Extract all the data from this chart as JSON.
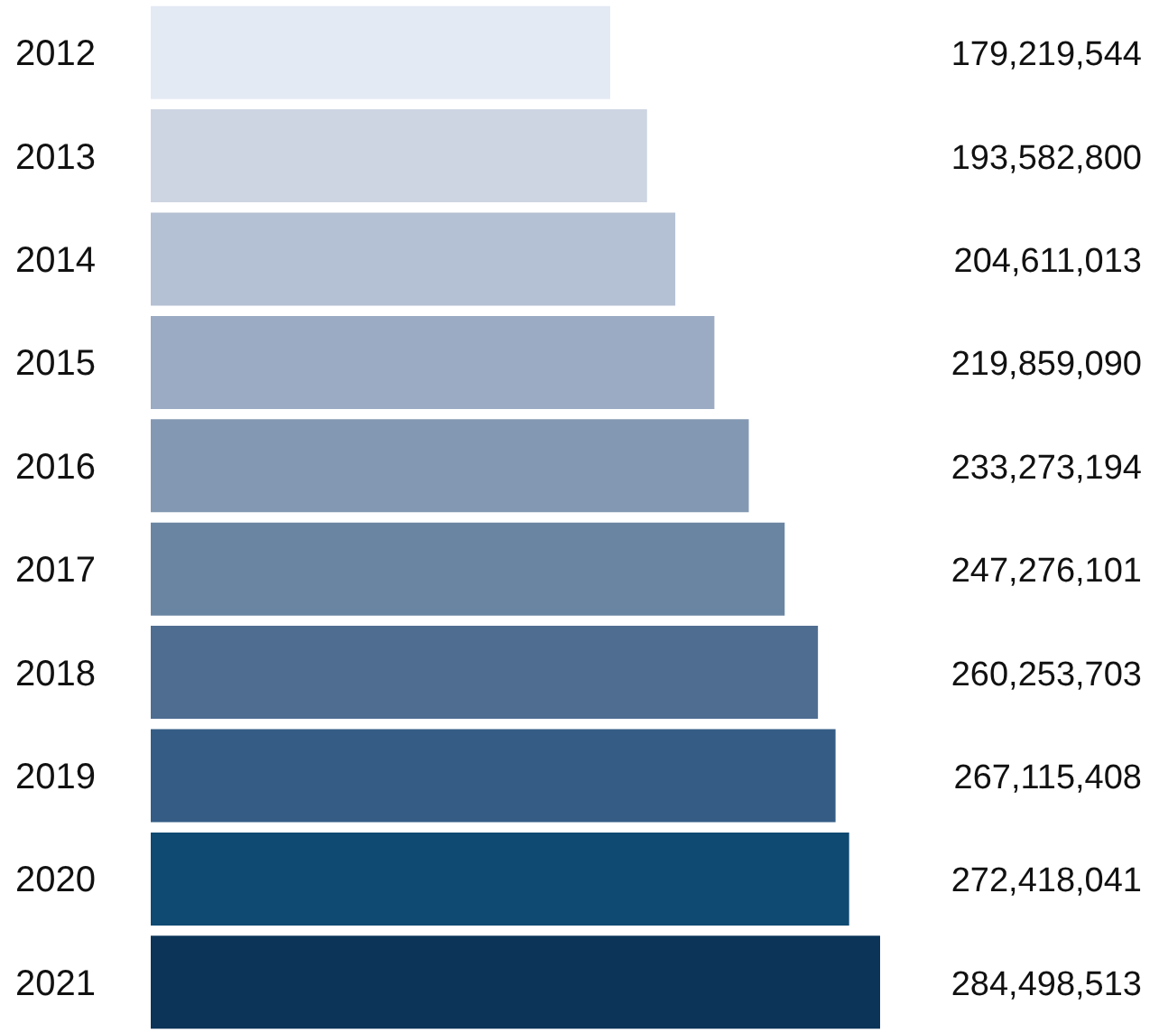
{
  "chart_data": {
    "type": "bar",
    "orientation": "horizontal",
    "categories": [
      "2012",
      "2013",
      "2014",
      "2015",
      "2016",
      "2017",
      "2018",
      "2019",
      "2020",
      "2021"
    ],
    "values": [
      179219544,
      193582800,
      204611013,
      219859090,
      233273194,
      247276101,
      260253703,
      267115408,
      272418041,
      284498513
    ],
    "value_labels": [
      "179,219,544",
      "193,582,800",
      "204,611,013",
      "219,859,090",
      "233,273,194",
      "247,276,101",
      "260,253,703",
      "267,115,408",
      "272,418,041",
      "284,498,513"
    ],
    "colors": [
      "#e4eaf4",
      "#cdd5e2",
      "#b4c0d3",
      "#9aabc3",
      "#8399b3",
      "#6a85a2",
      "#4f6d91",
      "#355c85",
      "#0f4a73",
      "#0c3459"
    ],
    "grid": false
  }
}
